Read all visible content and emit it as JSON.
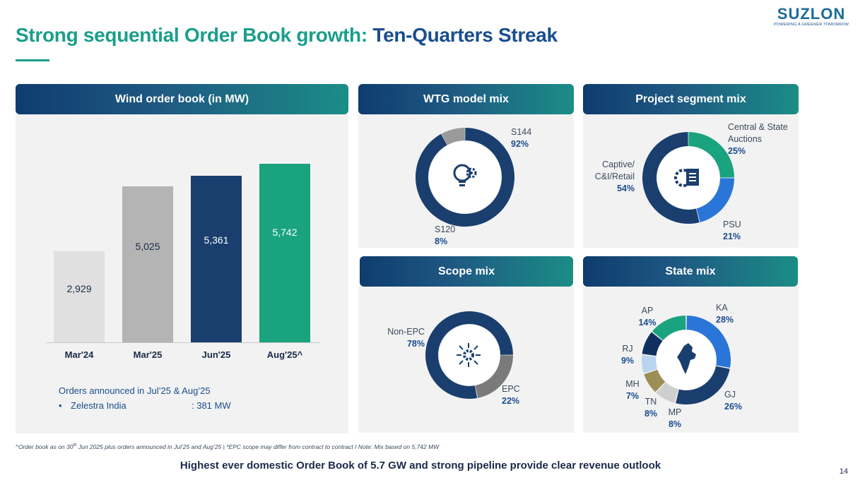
{
  "title": {
    "part1": "Strong sequential Order Book growth: ",
    "part2": "Ten-Quarters Streak"
  },
  "logo": {
    "word": "SUZLON",
    "tagline": "POWERING A GREENER TOMORROW"
  },
  "colors": {
    "navy": "#1a3f6e",
    "teal": "#1aa37f",
    "gray": "#9a9a9a",
    "lightgray": "#e0e0e0",
    "blue": "#2a75d8",
    "lightblue": "#b8d4f0",
    "olive": "#9c8f55"
  },
  "panels": {
    "order_book": "Wind order book (in MW)",
    "wtg_mix": "WTG model mix",
    "project_segment": "Project segment mix",
    "scope_mix": "Scope mix",
    "state_mix": "State mix"
  },
  "orders": {
    "title": "Orders announced in Jul’25 & Aug’25",
    "bullet": "•",
    "item_name": "Zelestra India",
    "item_amount": ": 381 MW"
  },
  "footnote": {
    "caret": "^Order book as on 30",
    "sup": "th",
    "rest": " Jun 2025 plus orders announced in Jul’25 and Aug’25  |  *EPC scope may differ from contract to contract I Note: Mix based on 5,742 MW"
  },
  "tagline": "Highest ever domestic Order Book of 5.7 GW and strong pipeline provide clear revenue outlook",
  "page_number": "14",
  "chart_data": [
    {
      "type": "bar",
      "title": "Wind order book (in MW)",
      "categories": [
        "Mar'24",
        "Mar'25",
        "Jun'25",
        "Aug'25^"
      ],
      "values": [
        2929,
        5025,
        5361,
        5742
      ],
      "value_labels": [
        "2,929",
        "5,025",
        "5,361",
        "5,742"
      ],
      "ylim": [
        0,
        6000
      ],
      "colors": [
        "#e0e0e0",
        "#b4b4b4",
        "#1a3f6e",
        "#1aa37f"
      ]
    },
    {
      "type": "pie",
      "title": "WTG model mix",
      "slices": [
        {
          "name": "S144",
          "value": 92,
          "label": "92%",
          "color": "#1a3f6e"
        },
        {
          "name": "S120",
          "value": 8,
          "label": "8%",
          "color": "#9a9a9a"
        }
      ]
    },
    {
      "type": "pie",
      "title": "Project segment mix",
      "slices": [
        {
          "name": "Central & State Auctions",
          "value": 25,
          "label": "25%",
          "color": "#1aa37f"
        },
        {
          "name": "PSU",
          "value": 21,
          "label": "21%",
          "color": "#2a75d8"
        },
        {
          "name": "Captive/ C&I/Retail",
          "value": 54,
          "label": "54%",
          "color": "#1a3f6e"
        }
      ]
    },
    {
      "type": "pie",
      "title": "Scope mix",
      "slices": [
        {
          "name": "EPC",
          "value": 22,
          "label": "22%",
          "color": "#7a7a7a"
        },
        {
          "name": "Non-EPC",
          "value": 78,
          "label": "78%",
          "color": "#1a3f6e"
        }
      ]
    },
    {
      "type": "pie",
      "title": "State mix",
      "slices": [
        {
          "name": "KA",
          "value": 28,
          "label": "28%",
          "color": "#2a75d8"
        },
        {
          "name": "GJ",
          "value": 26,
          "label": "26%",
          "color": "#1a3f6e"
        },
        {
          "name": "MP",
          "value": 8,
          "label": "8%",
          "color": "#cfcfcf"
        },
        {
          "name": "TN",
          "value": 8,
          "label": "8%",
          "color": "#9c8f55"
        },
        {
          "name": "MH",
          "value": 7,
          "label": "7%",
          "color": "#b8d4f0"
        },
        {
          "name": "RJ",
          "value": 9,
          "label": "9%",
          "color": "#0f2f5e"
        },
        {
          "name": "AP",
          "value": 14,
          "label": "14%",
          "color": "#1aa37f"
        }
      ]
    }
  ]
}
